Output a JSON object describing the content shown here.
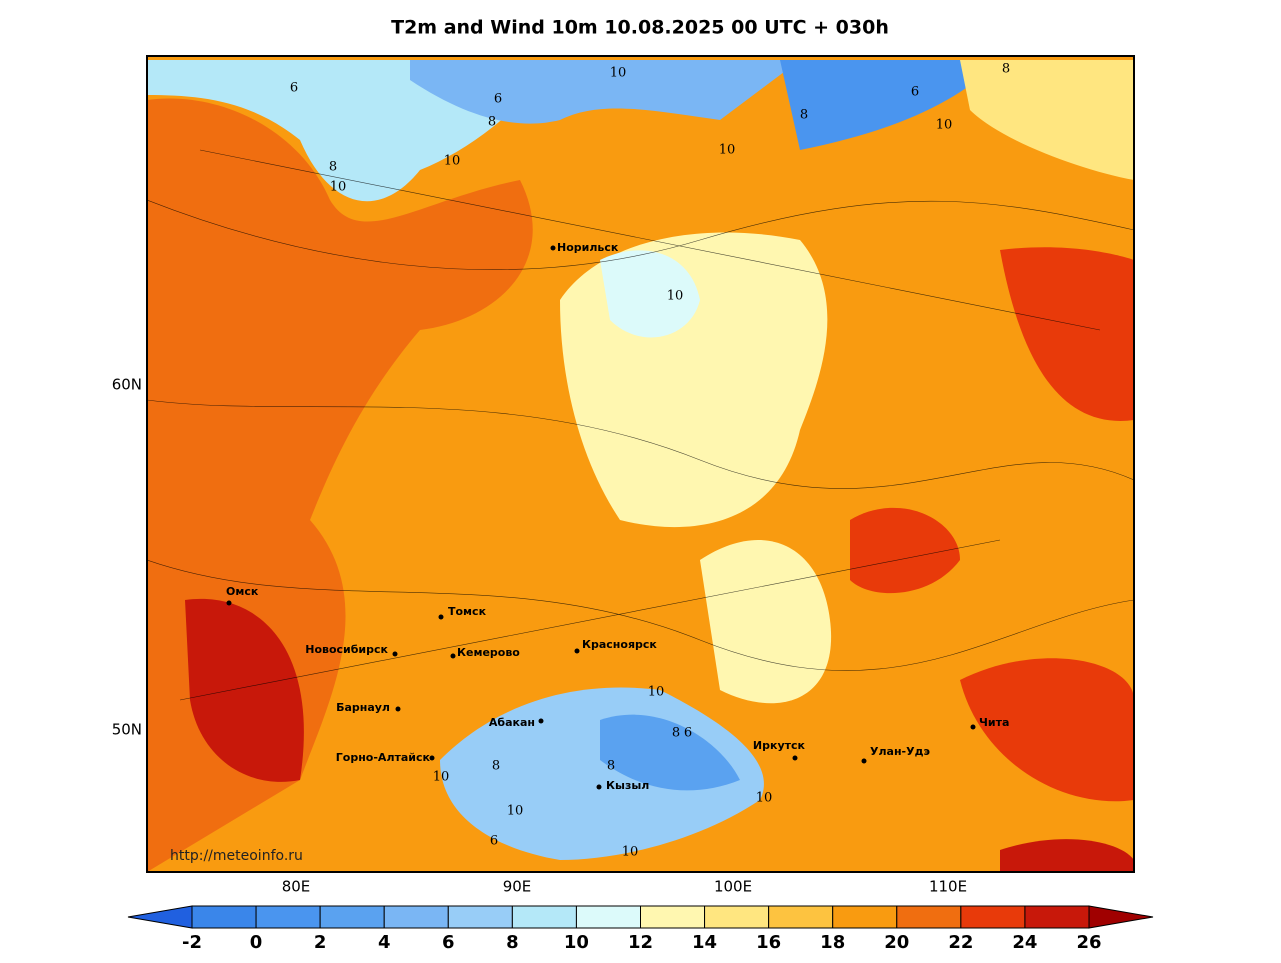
{
  "title": "T2m and Wind 10m 10.08.2025 00 UTC + 030h",
  "lat_labels": [
    "60N",
    "50N"
  ],
  "lon_labels": [
    "80E",
    "90E",
    "100E",
    "110E"
  ],
  "cities": [
    "Норильск",
    "Омск",
    "Томск",
    "Новосибирск",
    "Кемерово",
    "Красноярск",
    "Барнаул",
    "Абакан",
    "Горно-Алтайск",
    "Кызыл",
    "Иркутск",
    "Улан-Удэ",
    "Чита"
  ],
  "contour_labels": [
    6,
    10,
    6,
    8,
    8,
    10,
    10,
    10,
    8,
    6,
    10,
    8,
    10,
    10,
    8,
    6,
    10,
    8,
    8,
    10,
    6,
    10,
    10
  ],
  "source": "http://meteoinfo.ru",
  "colorbar": {
    "ticks": [
      -2,
      0,
      2,
      4,
      6,
      8,
      10,
      12,
      14,
      16,
      18,
      20,
      22,
      24,
      26
    ],
    "colors": [
      "#2060e0",
      "#3a86ea",
      "#4a95ef",
      "#5aa2f0",
      "#7ab6f4",
      "#98cdf7",
      "#b4e8f8",
      "#dcfafa",
      "#fff7b0",
      "#ffe680",
      "#fdc340",
      "#f99b10",
      "#f06e10",
      "#e83a0a",
      "#c8180a",
      "#a00000"
    ]
  }
}
